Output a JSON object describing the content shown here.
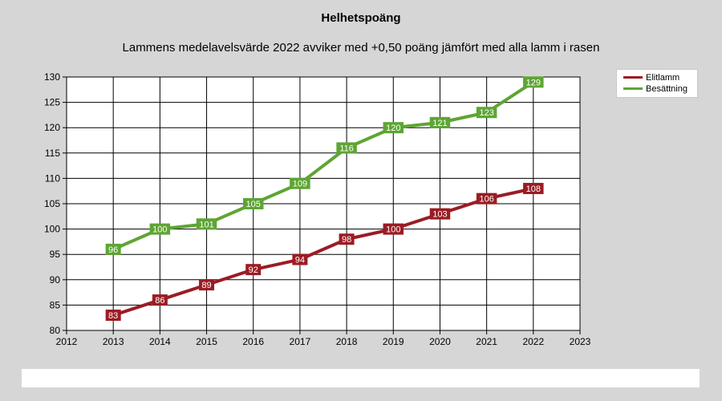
{
  "chart_data": {
    "type": "line",
    "title": "Helhetspoäng",
    "subtitle": "Lammens medelavelsvärde 2022 avviker med +0,50 poäng jämfört med alla lamm i rasen",
    "xlabel": "",
    "ylabel": "",
    "xlim": [
      2012,
      2023
    ],
    "ylim": [
      80,
      130
    ],
    "x_ticks": [
      2012,
      2013,
      2014,
      2015,
      2016,
      2017,
      2018,
      2019,
      2020,
      2021,
      2022,
      2023
    ],
    "y_ticks": [
      80,
      85,
      90,
      95,
      100,
      105,
      110,
      115,
      120,
      125,
      130
    ],
    "grid": true,
    "legend_position": "top-right",
    "x": [
      2013,
      2014,
      2015,
      2016,
      2017,
      2018,
      2019,
      2020,
      2021,
      2022
    ],
    "series": [
      {
        "name": "Elitlamm",
        "color": "#9b1c24",
        "values": [
          83,
          86,
          89,
          92,
          94,
          98,
          100,
          103,
          106,
          108
        ]
      },
      {
        "name": "Besättning",
        "color": "#5ea534",
        "values": [
          96,
          100,
          101,
          105,
          109,
          116,
          120,
          121,
          123,
          129
        ]
      }
    ]
  }
}
